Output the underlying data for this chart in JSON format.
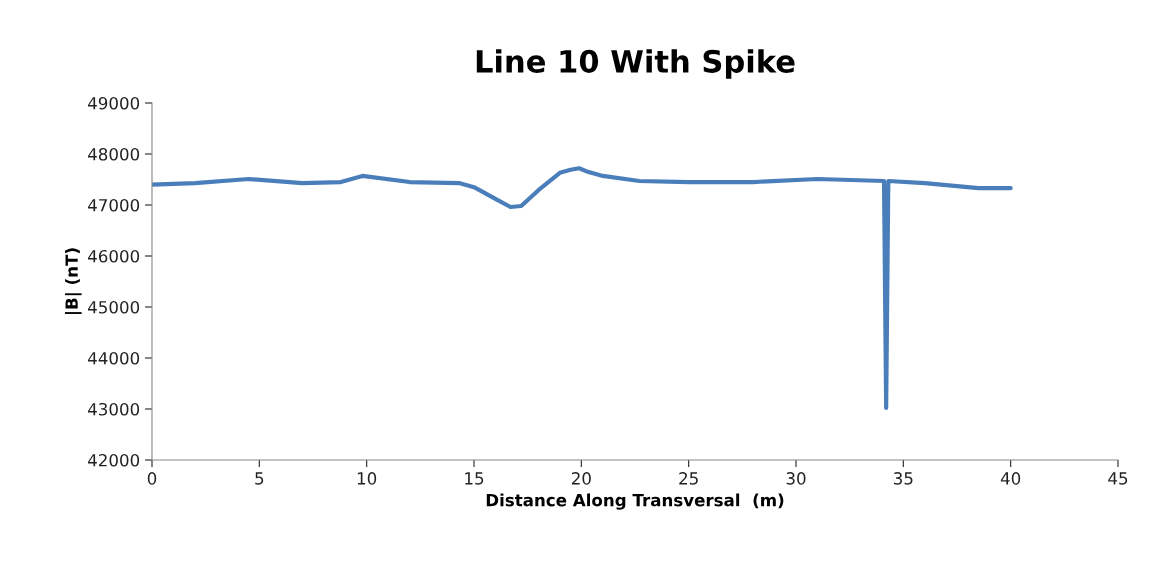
{
  "chart_data": {
    "type": "line",
    "title": "Line 10 With Spike",
    "xlabel": "Distance Along Transversal  (m)",
    "ylabel": "|B| (nT)",
    "series": [
      {
        "color": "#4a7ebb",
        "x": [
          0,
          2,
          4.5,
          7,
          8.8,
          9.8,
          12,
          14.3,
          15,
          16,
          16.7,
          17.2,
          18,
          19,
          19.5,
          19.9,
          20.3,
          21,
          22.7,
          25,
          28,
          31,
          34.1,
          34.2,
          34.3,
          36,
          37.5,
          38.5,
          40
        ],
        "values": [
          47400,
          47430,
          47510,
          47430,
          47450,
          47570,
          47450,
          47430,
          47350,
          47120,
          46960,
          46980,
          47290,
          47630,
          47690,
          47720,
          47650,
          47570,
          47470,
          47450,
          47450,
          47510,
          47470,
          43020,
          47470,
          47430,
          47370,
          47330,
          47330
        ]
      }
    ],
    "xlim": [
      0,
      45
    ],
    "xticks": [
      0,
      5,
      10,
      15,
      20,
      25,
      30,
      35,
      40,
      45
    ],
    "ylim": [
      42000,
      49000
    ],
    "yticks": [
      42000,
      43000,
      44000,
      45000,
      46000,
      47000,
      48000,
      49000
    ],
    "grid": false,
    "legend": false
  }
}
